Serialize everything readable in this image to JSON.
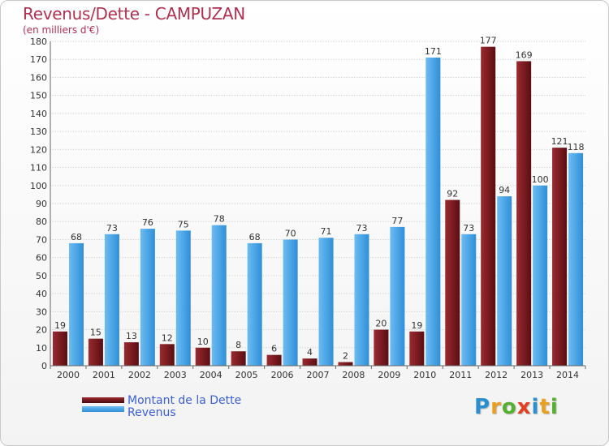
{
  "header": {
    "title": "Revenus/Dette - CAMPUZAN",
    "subtitle": "(en milliers d'€)"
  },
  "logo": {
    "letters": [
      "P",
      "r",
      "o",
      "x",
      "i",
      "t",
      "i"
    ],
    "colors": [
      "#2a8fd0",
      "#e8a020",
      "#55b030",
      "#e04020",
      "#2a8fd0",
      "#e8a020",
      "#55b030"
    ]
  },
  "chart_data": {
    "type": "bar",
    "categories": [
      "2000",
      "2001",
      "2002",
      "2003",
      "2004",
      "2005",
      "2006",
      "2007",
      "2008",
      "2009",
      "2010",
      "2011",
      "2012",
      "2013",
      "2014"
    ],
    "series": [
      {
        "name": "Montant de la Dette",
        "color": "#7a1a1f",
        "values": [
          19,
          15,
          13,
          12,
          10,
          8,
          6,
          4,
          2,
          20,
          19,
          92,
          177,
          169,
          121
        ]
      },
      {
        "name": "Revenus",
        "color": "#4aa3e6",
        "values": [
          68,
          73,
          76,
          75,
          78,
          68,
          70,
          71,
          73,
          77,
          171,
          73,
          94,
          100,
          118
        ]
      }
    ],
    "ylim": [
      0,
      180
    ],
    "yticks": [
      0,
      10,
      20,
      30,
      40,
      50,
      60,
      70,
      80,
      90,
      100,
      110,
      120,
      130,
      140,
      150,
      160,
      170,
      180
    ],
    "grid": true,
    "legend_position": "bottom-left"
  }
}
